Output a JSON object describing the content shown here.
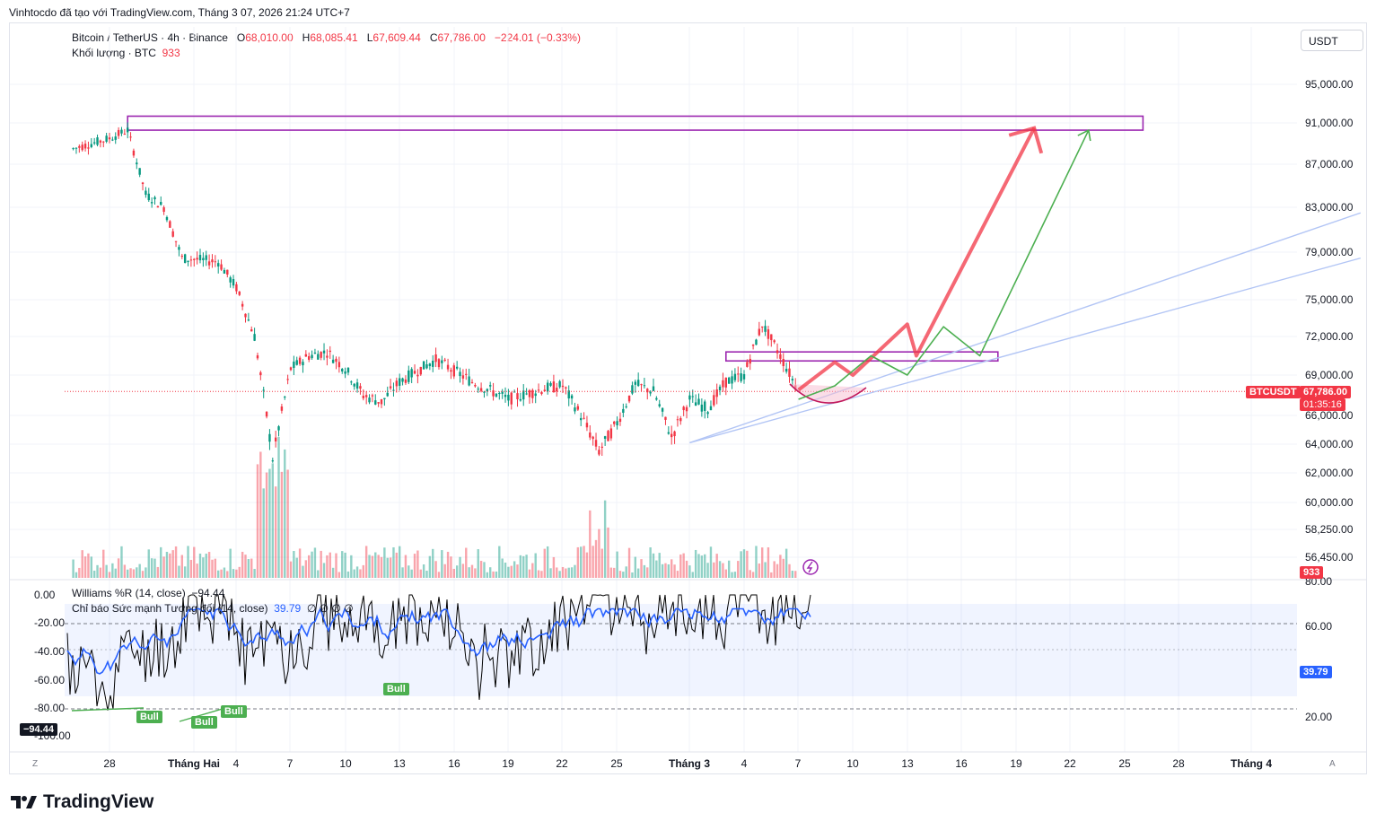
{
  "header": {
    "note": "Vinhtocdo đã tạo với TradingView.com, Tháng 3 07, 2026 21:24 UTC+7",
    "symbol": "Bitcoin / TetherUS · 4h · Binance",
    "o_label": "O",
    "o_value": "68,010.00",
    "h_label": "H",
    "h_value": "68,085.41",
    "l_label": "L",
    "l_value": "67,609.44",
    "c_label": "C",
    "c_value": "67,786.00",
    "change": "−224.01 (−0.33%)",
    "volume_label": "Khối lượng · BTC",
    "volume_value": "933",
    "currency_button": "USDT",
    "logo_text": "TradingView"
  },
  "price_tag": {
    "symbol": "BTCUSDT",
    "value": "67,786.00",
    "countdown": "01:35:16",
    "volume": "933",
    "color": "#f23645"
  },
  "indicators": {
    "wr_label": "Williams %R (14, close)",
    "wr_value": "−94.44",
    "rsi_label": "Chỉ báo Sức mạnh Tương đối",
    "rsi_params": "(14, close)",
    "rsi_value": "39.79",
    "rsi_extra": "∅ ∅ ∅ ∅",
    "bull_label": "Bull"
  },
  "axis_bottom": {
    "left_btn": "Z",
    "right_btn": "A",
    "ticks": [
      "28",
      "Tháng Hai",
      "4",
      "7",
      "10",
      "13",
      "16",
      "19",
      "22",
      "25",
      "Tháng 3",
      "4",
      "7",
      "10",
      "13",
      "16",
      "19",
      "22",
      "25",
      "28",
      "Tháng 4"
    ]
  },
  "chart_data": {
    "type": "candlestick",
    "title": "Bitcoin / TetherUS · 4h · Binance",
    "price_axis_ticks": [
      95000,
      91000,
      87000,
      83000,
      79000,
      75000,
      72000,
      69000,
      66000,
      64000,
      62000,
      60000,
      58250,
      56450
    ],
    "price_axis_labels": [
      "95,000.00",
      "91,000.00",
      "87,000.00",
      "83,000.00",
      "79,000.00",
      "75,000.00",
      "72,000.00",
      "69,000.00",
      "66,000.00",
      "64,000.00",
      "62,000.00",
      "60,000.00",
      "58,250.00",
      "56,450.00"
    ],
    "last_price": 67786,
    "price_path": [
      {
        "date": "Jan 26",
        "close": 88500
      },
      {
        "date": "Jan 28",
        "close": 89500
      },
      {
        "date": "Jan 29",
        "close": 90300
      },
      {
        "date": "Jan 30",
        "close": 84200
      },
      {
        "date": "Jan 31",
        "close": 83000
      },
      {
        "date": "Feb 1",
        "close": 78500
      },
      {
        "date": "Feb 3",
        "close": 78200
      },
      {
        "date": "Feb 4",
        "close": 76000
      },
      {
        "date": "Feb 5",
        "close": 72000
      },
      {
        "date": "Feb 6",
        "close": 63000
      },
      {
        "date": "Feb 7",
        "close": 69500
      },
      {
        "date": "Feb 8",
        "close": 70500
      },
      {
        "date": "Feb 9",
        "close": 70800
      },
      {
        "date": "Feb 10",
        "close": 69500
      },
      {
        "date": "Feb 11",
        "close": 67500
      },
      {
        "date": "Feb 12",
        "close": 67000
      },
      {
        "date": "Feb 13",
        "close": 68500
      },
      {
        "date": "Feb 15",
        "close": 70200
      },
      {
        "date": "Feb 17",
        "close": 68500
      },
      {
        "date": "Feb 19",
        "close": 67200
      },
      {
        "date": "Feb 21",
        "close": 68000
      },
      {
        "date": "Feb 22",
        "close": 68200
      },
      {
        "date": "Feb 23",
        "close": 66000
      },
      {
        "date": "Feb 24",
        "close": 63500
      },
      {
        "date": "Feb 25",
        "close": 65500
      },
      {
        "date": "Feb 26",
        "close": 68300
      },
      {
        "date": "Feb 27",
        "close": 67800
      },
      {
        "date": "Feb 28",
        "close": 64500
      },
      {
        "date": "Mar 1",
        "close": 67200
      },
      {
        "date": "Mar 2",
        "close": 66500
      },
      {
        "date": "Mar 3",
        "close": 68500
      },
      {
        "date": "Mar 4",
        "close": 69000
      },
      {
        "date": "Mar 5",
        "close": 73000
      },
      {
        "date": "Mar 6",
        "close": 70500
      },
      {
        "date": "Mar 7",
        "close": 67786
      }
    ],
    "resistance_zones": [
      {
        "from_date": "Jan 29",
        "to_date": "Mar 26",
        "low": 90300,
        "high": 91700,
        "color": "#9c27b0"
      },
      {
        "from_date": "Mar 3",
        "to_date": "Mar 18",
        "low": 70100,
        "high": 70800,
        "color": "#9c27b0"
      }
    ],
    "projections": [
      {
        "name": "red",
        "color": "#f23645",
        "points": [
          {
            "date": "Mar 7",
            "price": 67900
          },
          {
            "date": "Mar 9",
            "price": 70000
          },
          {
            "date": "Mar 10",
            "price": 69000
          },
          {
            "date": "Mar 13",
            "price": 73000
          },
          {
            "date": "Mar 13.5",
            "price": 70500
          },
          {
            "date": "Mar 20",
            "price": 90500
          }
        ]
      },
      {
        "name": "green",
        "color": "#4caf50",
        "points": [
          {
            "date": "Mar 7",
            "price": 67200
          },
          {
            "date": "Mar 9",
            "price": 68200
          },
          {
            "date": "Mar 11",
            "price": 70500
          },
          {
            "date": "Mar 13",
            "price": 69000
          },
          {
            "date": "Mar 15",
            "price": 72800
          },
          {
            "date": "Mar 17",
            "price": 70500
          },
          {
            "date": "Mar 23",
            "price": 90300
          }
        ]
      }
    ],
    "trend_lines": [
      {
        "from": {
          "date": "Mar 1",
          "price": 64100
        },
        "to": {
          "date": "Apr 7",
          "price": 82500
        }
      },
      {
        "from": {
          "date": "Mar 1",
          "price": 64100
        },
        "to": {
          "date": "Apr 7",
          "price": 78500
        }
      }
    ],
    "volume": {
      "last": 933,
      "peak_date": "Feb 6"
    },
    "williams_r": {
      "axis_ticks": [
        "0.00",
        "-20.00",
        "-40.00",
        "-60.00",
        "-80.00",
        "-100.00"
      ],
      "last": -94.44
    },
    "rsi": {
      "axis_ticks": [
        "80.00",
        "60.00",
        "20.00"
      ],
      "bands": [
        30,
        70
      ],
      "last": 39.79
    },
    "x_ticks": [
      "28",
      "Tháng Hai",
      "4",
      "7",
      "10",
      "13",
      "16",
      "19",
      "22",
      "25",
      "Tháng 3",
      "4",
      "7",
      "10",
      "13",
      "16",
      "19",
      "22",
      "25",
      "28",
      "Tháng 4"
    ]
  },
  "colors": {
    "up": "#089981",
    "down": "#f23645",
    "rsi_line": "#2962ff",
    "wr_line": "#000000",
    "zone": "#9c27b0"
  }
}
